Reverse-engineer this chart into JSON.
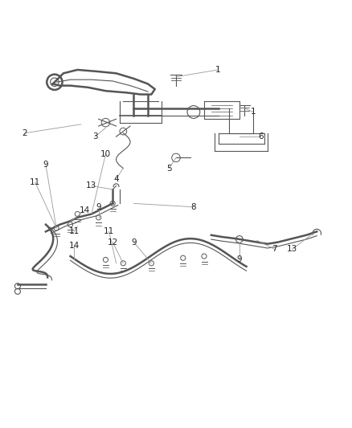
{
  "bg_color": "#ffffff",
  "line_color": "#555555",
  "label_color": "#222222",
  "leader_color": "#999999",
  "fig_width": 4.38,
  "fig_height": 5.33,
  "dpi": 100,
  "lw_thick": 1.8,
  "lw_main": 1.2,
  "lw_thin": 0.8,
  "lw_xtra": 0.5,
  "label_fs": 7.5
}
